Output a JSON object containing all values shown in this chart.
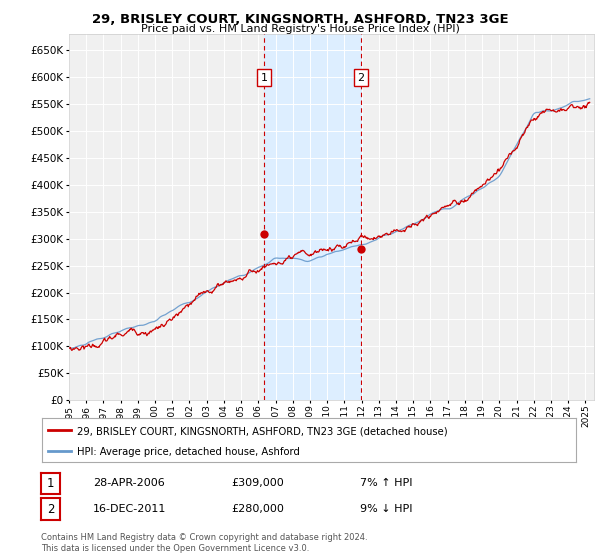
{
  "title": "29, BRISLEY COURT, KINGSNORTH, ASHFORD, TN23 3GE",
  "subtitle": "Price paid vs. HM Land Registry's House Price Index (HPI)",
  "ylim": [
    0,
    680000
  ],
  "yticks": [
    0,
    50000,
    100000,
    150000,
    200000,
    250000,
    300000,
    350000,
    400000,
    450000,
    500000,
    550000,
    600000,
    650000
  ],
  "xlim_start": 1995.0,
  "xlim_end": 2025.5,
  "background_color": "#ffffff",
  "plot_bg_color": "#f0f0f0",
  "grid_color": "#ffffff",
  "hpi_color": "#6699cc",
  "price_color": "#cc0000",
  "marker_color": "#cc0000",
  "shade_color": "#ddeeff",
  "transactions": [
    {
      "date": 2006.33,
      "price": 309000,
      "label": "1"
    },
    {
      "date": 2011.96,
      "price": 280000,
      "label": "2"
    }
  ],
  "vline_color": "#cc0000",
  "legend_label_price": "29, BRISLEY COURT, KINGSNORTH, ASHFORD, TN23 3GE (detached house)",
  "legend_label_hpi": "HPI: Average price, detached house, Ashford",
  "note1_label": "1",
  "note1_date": "28-APR-2006",
  "note1_price": "£309,000",
  "note1_hpi": "7% ↑ HPI",
  "note2_label": "2",
  "note2_date": "16-DEC-2011",
  "note2_price": "£280,000",
  "note2_hpi": "9% ↓ HPI",
  "footer": "Contains HM Land Registry data © Crown copyright and database right 2024.\nThis data is licensed under the Open Government Licence v3.0."
}
